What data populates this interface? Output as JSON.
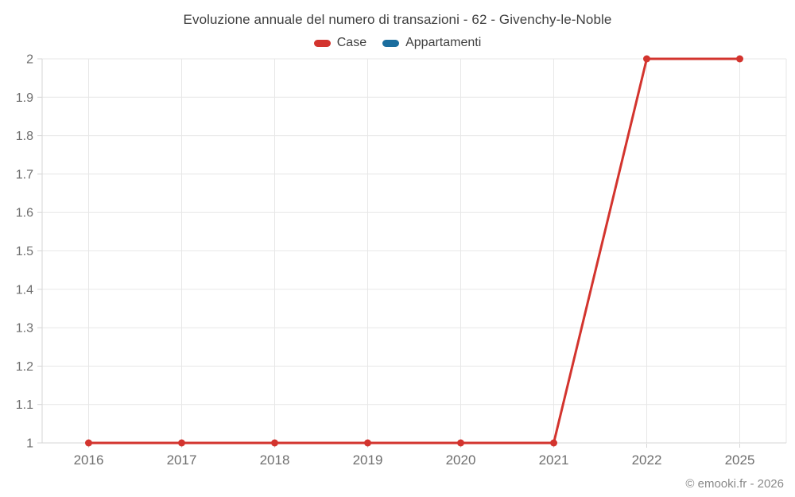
{
  "title": "Evoluzione annuale del numero di transazioni - 62 - Givenchy-le-Noble",
  "footer": "© emooki.fr - 2026",
  "colors": {
    "grid": "#e7e7e7",
    "axis": "#d6d6d6",
    "title_text": "#3f3f3f",
    "tick_text": "#6f6f6f",
    "footer_text": "#8a8a8a"
  },
  "chart_data": {
    "type": "line",
    "title": "Evoluzione annuale del numero di transazioni - 62 - Givenchy-le-Noble",
    "categories": [
      "2016",
      "2017",
      "2018",
      "2019",
      "2020",
      "2021",
      "2022",
      "2025"
    ],
    "series": [
      {
        "name": "Case",
        "color": "#d3342e",
        "values": [
          1,
          1,
          1,
          1,
          1,
          1,
          2,
          2
        ]
      },
      {
        "name": "Appartamenti",
        "color": "#1a6d9e",
        "values": []
      }
    ],
    "xlabel": "",
    "ylabel": "",
    "ylim": [
      1,
      2
    ],
    "ytick_step": 0.1,
    "ytick_labels": [
      "1",
      "1.1",
      "1.2",
      "1.3",
      "1.4",
      "1.5",
      "1.6",
      "1.7",
      "1.8",
      "1.9",
      "2"
    ],
    "grid": true,
    "legend_position": "top",
    "marker": "circle"
  }
}
